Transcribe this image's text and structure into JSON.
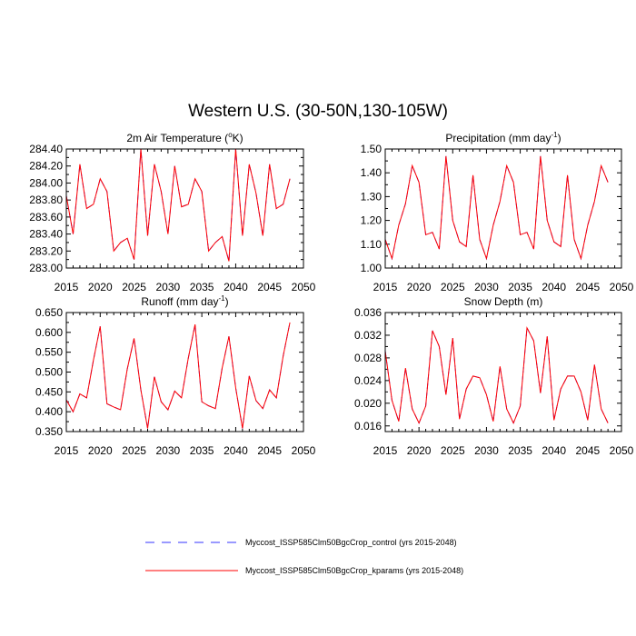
{
  "figure_title": "Western U.S. (30-50N,130-105W)",
  "legend": {
    "control_label": "Myccost_ISSP585Clm50BgcCrop_control (yrs 2015-2048)",
    "kparams_label": "Myccost_ISSP585Clm50BgcCrop_kparams (yrs 2015-2048)"
  },
  "colors": {
    "control": "#3333ff",
    "kparams": "#ff0000",
    "axis": "#000000"
  },
  "chart_data": [
    {
      "type": "line",
      "title": "2m Air Temperature (°K)",
      "title_main": "2m Air Temperature (",
      "title_sup": "o",
      "title_tail": "K)",
      "xlim": [
        2015,
        2050
      ],
      "ylim": [
        283.0,
        284.4
      ],
      "xticks": [
        2015,
        2020,
        2025,
        2030,
        2035,
        2040,
        2045,
        2050
      ],
      "xtick_labels": [
        "2015",
        "2020",
        "2025",
        "2030",
        "2035",
        "2040",
        "2045",
        "2050"
      ],
      "yticks": [
        283.0,
        283.2,
        283.4,
        283.6,
        283.8,
        284.0,
        284.2,
        284.4
      ],
      "ytick_labels": [
        "283.00",
        "283.20",
        "283.40",
        "283.60",
        "283.80",
        "284.00",
        "284.20",
        "284.40"
      ],
      "x": [
        2015,
        2016,
        2017,
        2018,
        2019,
        2020,
        2021,
        2022,
        2023,
        2024,
        2025,
        2026,
        2027,
        2028,
        2029,
        2030,
        2031,
        2032,
        2033,
        2034,
        2035,
        2036,
        2037,
        2038,
        2039,
        2040,
        2041,
        2042,
        2043,
        2044,
        2045,
        2046,
        2047,
        2048
      ],
      "series": [
        {
          "name": "control",
          "values": [
            283.85,
            283.4,
            284.22,
            283.7,
            283.75,
            284.05,
            283.9,
            283.2,
            283.3,
            283.35,
            283.1,
            284.4,
            283.38,
            284.22,
            283.9,
            283.4,
            284.2,
            283.72,
            283.75,
            284.05,
            283.9,
            283.2,
            283.3,
            283.37,
            283.08,
            284.4,
            283.38,
            284.22,
            283.88,
            283.38,
            284.22,
            283.7,
            283.75,
            284.05
          ]
        },
        {
          "name": "kparams",
          "values": [
            283.85,
            283.4,
            284.22,
            283.7,
            283.75,
            284.05,
            283.9,
            283.2,
            283.3,
            283.35,
            283.1,
            284.4,
            283.38,
            284.22,
            283.9,
            283.4,
            284.2,
            283.72,
            283.75,
            284.05,
            283.9,
            283.2,
            283.3,
            283.37,
            283.08,
            284.4,
            283.38,
            284.22,
            283.88,
            283.38,
            284.22,
            283.7,
            283.75,
            284.05
          ]
        }
      ]
    },
    {
      "type": "line",
      "title": "Precipitation (mm day-1)",
      "title_main": "Precipitation (mm day",
      "title_sup": "-1",
      "title_tail": ")",
      "xlim": [
        2015,
        2050
      ],
      "ylim": [
        1.0,
        1.5
      ],
      "xticks": [
        2015,
        2020,
        2025,
        2030,
        2035,
        2040,
        2045,
        2050
      ],
      "xtick_labels": [
        "2015",
        "2020",
        "2025",
        "2030",
        "2035",
        "2040",
        "2045",
        "2050"
      ],
      "yticks": [
        1.0,
        1.1,
        1.2,
        1.3,
        1.4,
        1.5
      ],
      "ytick_labels": [
        "1.00",
        "1.10",
        "1.20",
        "1.30",
        "1.40",
        "1.50"
      ],
      "x": [
        2015,
        2016,
        2017,
        2018,
        2019,
        2020,
        2021,
        2022,
        2023,
        2024,
        2025,
        2026,
        2027,
        2028,
        2029,
        2030,
        2031,
        2032,
        2033,
        2034,
        2035,
        2036,
        2037,
        2038,
        2039,
        2040,
        2041,
        2042,
        2043,
        2044,
        2045,
        2046,
        2047,
        2048
      ],
      "series": [
        {
          "name": "control",
          "values": [
            1.12,
            1.04,
            1.18,
            1.27,
            1.43,
            1.36,
            1.14,
            1.15,
            1.08,
            1.47,
            1.2,
            1.11,
            1.09,
            1.39,
            1.12,
            1.04,
            1.18,
            1.28,
            1.43,
            1.36,
            1.14,
            1.15,
            1.08,
            1.47,
            1.2,
            1.11,
            1.09,
            1.39,
            1.12,
            1.04,
            1.18,
            1.28,
            1.43,
            1.36
          ]
        },
        {
          "name": "kparams",
          "values": [
            1.12,
            1.04,
            1.18,
            1.27,
            1.43,
            1.36,
            1.14,
            1.15,
            1.08,
            1.47,
            1.2,
            1.11,
            1.09,
            1.39,
            1.12,
            1.04,
            1.18,
            1.28,
            1.43,
            1.36,
            1.14,
            1.15,
            1.08,
            1.47,
            1.2,
            1.11,
            1.09,
            1.39,
            1.12,
            1.04,
            1.18,
            1.28,
            1.43,
            1.36
          ]
        }
      ]
    },
    {
      "type": "line",
      "title": "Runoff (mm day-1)",
      "title_main": "Runoff (mm day",
      "title_sup": "-1",
      "title_tail": ")",
      "xlim": [
        2015,
        2050
      ],
      "ylim": [
        0.35,
        0.65
      ],
      "xticks": [
        2015,
        2020,
        2025,
        2030,
        2035,
        2040,
        2045,
        2050
      ],
      "xtick_labels": [
        "2015",
        "2020",
        "2025",
        "2030",
        "2035",
        "2040",
        "2045",
        "2050"
      ],
      "yticks": [
        0.35,
        0.4,
        0.45,
        0.5,
        0.55,
        0.6,
        0.65
      ],
      "ytick_labels": [
        "0.350",
        "0.400",
        "0.450",
        "0.500",
        "0.550",
        "0.600",
        "0.650"
      ],
      "x": [
        2015,
        2016,
        2017,
        2018,
        2019,
        2020,
        2021,
        2022,
        2023,
        2024,
        2025,
        2026,
        2027,
        2028,
        2029,
        2030,
        2031,
        2032,
        2033,
        2034,
        2035,
        2036,
        2037,
        2038,
        2039,
        2040,
        2041,
        2042,
        2043,
        2044,
        2045,
        2046,
        2047,
        2048
      ],
      "series": [
        {
          "name": "control",
          "values": [
            0.43,
            0.4,
            0.445,
            0.435,
            0.53,
            0.615,
            0.42,
            0.412,
            0.405,
            0.508,
            0.585,
            0.455,
            0.358,
            0.488,
            0.425,
            0.405,
            0.452,
            0.435,
            0.535,
            0.62,
            0.425,
            0.415,
            0.408,
            0.51,
            0.59,
            0.46,
            0.358,
            0.49,
            0.428,
            0.408,
            0.455,
            0.435,
            0.54,
            0.625
          ]
        },
        {
          "name": "kparams",
          "values": [
            0.43,
            0.4,
            0.445,
            0.435,
            0.53,
            0.615,
            0.42,
            0.412,
            0.405,
            0.508,
            0.585,
            0.455,
            0.358,
            0.488,
            0.425,
            0.405,
            0.452,
            0.435,
            0.535,
            0.62,
            0.425,
            0.415,
            0.408,
            0.51,
            0.59,
            0.46,
            0.358,
            0.49,
            0.428,
            0.408,
            0.455,
            0.435,
            0.54,
            0.625
          ]
        }
      ]
    },
    {
      "type": "line",
      "title": "Snow Depth (m)",
      "title_main": "Snow Depth (m)",
      "title_sup": "",
      "title_tail": "",
      "xlim": [
        2015,
        2050
      ],
      "ylim": [
        0.015,
        0.036
      ],
      "xticks": [
        2015,
        2020,
        2025,
        2030,
        2035,
        2040,
        2045,
        2050
      ],
      "xtick_labels": [
        "2015",
        "2020",
        "2025",
        "2030",
        "2035",
        "2040",
        "2045",
        "2050"
      ],
      "yticks": [
        0.016,
        0.02,
        0.024,
        0.028,
        0.032,
        0.036
      ],
      "ytick_labels": [
        "0.016",
        "0.020",
        "0.024",
        "0.028",
        "0.032",
        "0.036"
      ],
      "x": [
        2015,
        2016,
        2017,
        2018,
        2019,
        2020,
        2021,
        2022,
        2023,
        2024,
        2025,
        2026,
        2027,
        2028,
        2029,
        2030,
        2031,
        2032,
        2033,
        2034,
        2035,
        2036,
        2037,
        2038,
        2039,
        2040,
        2041,
        2042,
        2043,
        2044,
        2045,
        2046,
        2047,
        2048
      ],
      "series": [
        {
          "name": "control",
          "values": [
            0.0292,
            0.0205,
            0.0168,
            0.0262,
            0.019,
            0.0165,
            0.0195,
            0.0328,
            0.03,
            0.0215,
            0.0315,
            0.0172,
            0.0225,
            0.0248,
            0.0245,
            0.0215,
            0.0168,
            0.0265,
            0.019,
            0.0165,
            0.0195,
            0.0333,
            0.031,
            0.0218,
            0.0318,
            0.017,
            0.0225,
            0.0248,
            0.0248,
            0.022,
            0.017,
            0.0268,
            0.019,
            0.0165
          ]
        },
        {
          "name": "kparams",
          "values": [
            0.0292,
            0.0205,
            0.0168,
            0.0262,
            0.019,
            0.0165,
            0.0195,
            0.0328,
            0.03,
            0.0215,
            0.0315,
            0.0172,
            0.0225,
            0.0248,
            0.0245,
            0.0215,
            0.0168,
            0.0265,
            0.019,
            0.0165,
            0.0195,
            0.0333,
            0.031,
            0.0218,
            0.0318,
            0.017,
            0.0225,
            0.0248,
            0.0248,
            0.022,
            0.017,
            0.0268,
            0.019,
            0.0165
          ]
        }
      ]
    }
  ]
}
